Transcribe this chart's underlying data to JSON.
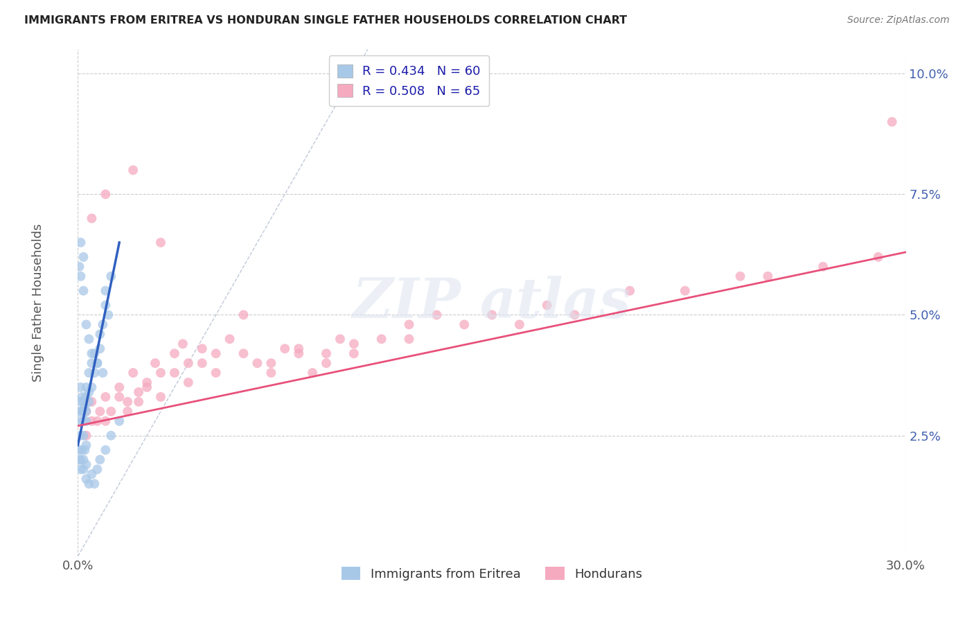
{
  "title": "IMMIGRANTS FROM ERITREA VS HONDURAN SINGLE FATHER HOUSEHOLDS CORRELATION CHART",
  "source": "Source: ZipAtlas.com",
  "ylabel": "Single Father Households",
  "legend_labels": [
    "Immigrants from Eritrea",
    "Hondurans"
  ],
  "legend_r_values": [
    "R = 0.434",
    "R = 0.508"
  ],
  "legend_n_values": [
    "N = 60",
    "N = 65"
  ],
  "xlim": [
    0.0,
    0.3
  ],
  "ylim": [
    0.0,
    0.105
  ],
  "ytick_labels": [
    "2.5%",
    "5.0%",
    "7.5%",
    "10.0%"
  ],
  "ytick_positions": [
    0.025,
    0.05,
    0.075,
    0.1
  ],
  "color_eritrea": "#a8c8e8",
  "color_honduran": "#f5aac0",
  "line_color_eritrea": "#3060c0",
  "line_color_honduran": "#e8507a",
  "line_ref_color": "#c0c8d8",
  "background_color": "#ffffff",
  "eritrea_x": [
    0.0005,
    0.001,
    0.001,
    0.001,
    0.0015,
    0.0015,
    0.002,
    0.002,
    0.002,
    0.002,
    0.0025,
    0.003,
    0.003,
    0.003,
    0.003,
    0.004,
    0.004,
    0.004,
    0.005,
    0.005,
    0.006,
    0.006,
    0.007,
    0.008,
    0.008,
    0.009,
    0.01,
    0.01,
    0.011,
    0.012,
    0.0005,
    0.0005,
    0.001,
    0.001,
    0.001,
    0.0015,
    0.002,
    0.002,
    0.0025,
    0.003,
    0.003,
    0.003,
    0.004,
    0.005,
    0.006,
    0.007,
    0.008,
    0.01,
    0.012,
    0.015,
    0.0005,
    0.001,
    0.001,
    0.002,
    0.002,
    0.003,
    0.004,
    0.005,
    0.007,
    0.009
  ],
  "eritrea_y": [
    0.03,
    0.035,
    0.028,
    0.032,
    0.03,
    0.033,
    0.028,
    0.03,
    0.025,
    0.032,
    0.031,
    0.03,
    0.028,
    0.033,
    0.035,
    0.032,
    0.034,
    0.038,
    0.035,
    0.04,
    0.042,
    0.038,
    0.04,
    0.043,
    0.046,
    0.048,
    0.052,
    0.055,
    0.05,
    0.058,
    0.02,
    0.022,
    0.018,
    0.02,
    0.025,
    0.022,
    0.018,
    0.02,
    0.022,
    0.016,
    0.019,
    0.023,
    0.015,
    0.017,
    0.015,
    0.018,
    0.02,
    0.022,
    0.025,
    0.028,
    0.06,
    0.058,
    0.065,
    0.062,
    0.055,
    0.048,
    0.045,
    0.042,
    0.04,
    0.038
  ],
  "honduran_x": [
    0.003,
    0.005,
    0.007,
    0.01,
    0.012,
    0.015,
    0.018,
    0.02,
    0.022,
    0.025,
    0.028,
    0.03,
    0.035,
    0.038,
    0.04,
    0.045,
    0.05,
    0.055,
    0.06,
    0.065,
    0.07,
    0.075,
    0.08,
    0.085,
    0.09,
    0.095,
    0.1,
    0.11,
    0.12,
    0.13,
    0.003,
    0.005,
    0.008,
    0.01,
    0.015,
    0.018,
    0.022,
    0.025,
    0.03,
    0.035,
    0.04,
    0.045,
    0.05,
    0.06,
    0.07,
    0.08,
    0.09,
    0.1,
    0.12,
    0.14,
    0.15,
    0.16,
    0.17,
    0.18,
    0.2,
    0.22,
    0.24,
    0.25,
    0.27,
    0.29,
    0.005,
    0.01,
    0.02,
    0.03,
    0.295
  ],
  "honduran_y": [
    0.03,
    0.032,
    0.028,
    0.033,
    0.03,
    0.035,
    0.032,
    0.038,
    0.034,
    0.036,
    0.04,
    0.038,
    0.042,
    0.044,
    0.04,
    0.043,
    0.042,
    0.045,
    0.05,
    0.04,
    0.038,
    0.043,
    0.042,
    0.038,
    0.04,
    0.045,
    0.042,
    0.045,
    0.048,
    0.05,
    0.025,
    0.028,
    0.03,
    0.028,
    0.033,
    0.03,
    0.032,
    0.035,
    0.033,
    0.038,
    0.036,
    0.04,
    0.038,
    0.042,
    0.04,
    0.043,
    0.042,
    0.044,
    0.045,
    0.048,
    0.05,
    0.048,
    0.052,
    0.05,
    0.055,
    0.055,
    0.058,
    0.058,
    0.06,
    0.062,
    0.07,
    0.075,
    0.08,
    0.065,
    0.09
  ],
  "eritrea_line_x": [
    0.0,
    0.015
  ],
  "eritrea_line_y": [
    0.023,
    0.065
  ],
  "honduran_line_x": [
    0.0,
    0.3
  ],
  "honduran_line_y": [
    0.027,
    0.063
  ],
  "ref_line_x": [
    0.0,
    0.105
  ],
  "ref_line_y": [
    0.0,
    0.105
  ]
}
